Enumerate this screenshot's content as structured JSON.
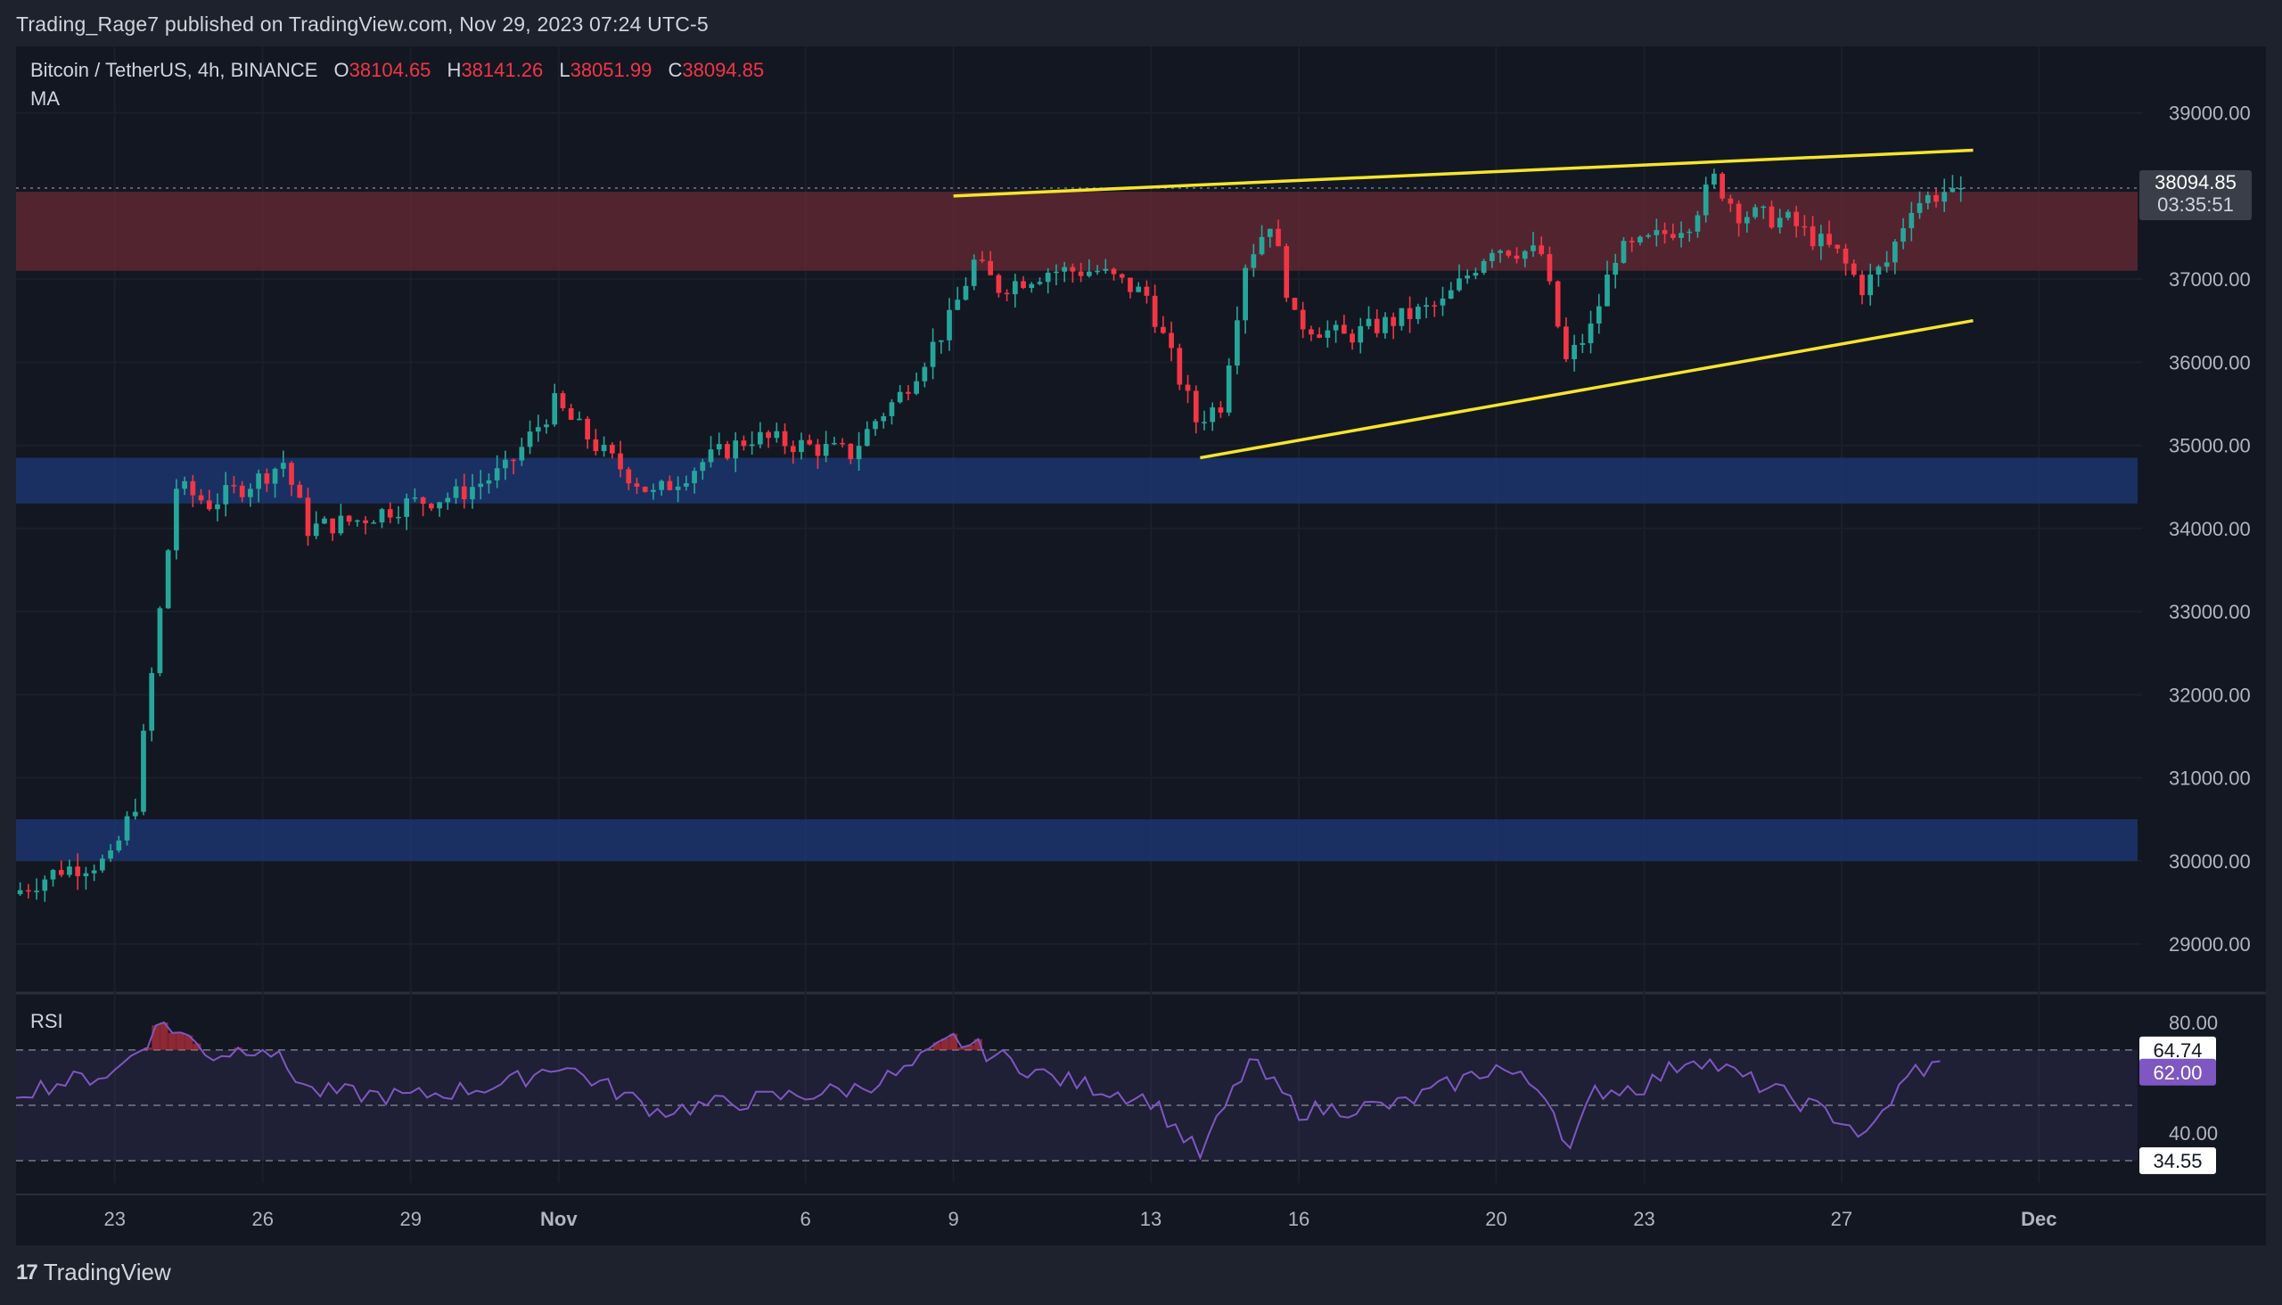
{
  "header": {
    "publish_text": "Trading_Rage7 published on TradingView.com, Nov 29, 2023 07:24 UTC-5"
  },
  "legend": {
    "symbol": "Bitcoin / TetherUS, 4h, BINANCE",
    "open_label": "O",
    "open": "38104.65",
    "high_label": "H",
    "high": "38141.26",
    "low_label": "L",
    "low": "38051.99",
    "close_label": "C",
    "close": "38094.85",
    "ma_label": "MA"
  },
  "rsi_panel": {
    "label": "RSI"
  },
  "price_badge": {
    "price": "38094.85",
    "countdown": "03:35:51"
  },
  "footer": {
    "brand": "TradingView",
    "logo_glyph": "17"
  },
  "colors": {
    "background": "#131722",
    "frame": "#1e222d",
    "bull": "#26a69a",
    "bear": "#f23645",
    "resistance_zone": "#6b2a35",
    "support_zone": "#1e3a78",
    "trendline": "#f5e52b",
    "rsi_line": "#7e57c2"
  },
  "chart_data": [
    {
      "type": "candlestick",
      "title": "Bitcoin / TetherUS, 4h, BINANCE",
      "x_axis": {
        "start": "Oct 21, 2023",
        "end": "Dec 3, 2023",
        "tick_labels": [
          "23",
          "26",
          "29",
          "Nov",
          "6",
          "9",
          "13",
          "16",
          "20",
          "23",
          "27",
          "Dec"
        ]
      },
      "y_axis": {
        "range": [
          28400,
          39800
        ],
        "tick_labels": [
          "39000.00",
          "37000.00",
          "36000.00",
          "35000.00",
          "34000.00",
          "33000.00",
          "32000.00",
          "31000.00",
          "30000.00",
          "29000.00"
        ]
      },
      "price_path": [
        [
          "Oct 21",
          29600
        ],
        [
          "Oct 22",
          29900
        ],
        [
          "Oct 23",
          30000
        ],
        [
          "Oct 23 12:00",
          30700
        ],
        [
          "Oct 24",
          33000
        ],
        [
          "Oct 24 08:00",
          34500
        ],
        [
          "Oct 25",
          34300
        ],
        [
          "Oct 26",
          34600
        ],
        [
          "Oct 26 12:00",
          34800
        ],
        [
          "Oct 27",
          34000
        ],
        [
          "Oct 28",
          34100
        ],
        [
          "Oct 29",
          34300
        ],
        [
          "Oct 30",
          34400
        ],
        [
          "Oct 31",
          34700
        ],
        [
          "Nov 1",
          35500
        ],
        [
          "Nov 2",
          34900
        ],
        [
          "Nov 3",
          34400
        ],
        [
          "Nov 4",
          34800
        ],
        [
          "Nov 5",
          35100
        ],
        [
          "Nov 6",
          35000
        ],
        [
          "Nov 7",
          34900
        ],
        [
          "Nov 7 12:00",
          35300
        ],
        [
          "Nov 8",
          35600
        ],
        [
          "Nov 9",
          36500
        ],
        [
          "Nov 9 12:00",
          37200
        ],
        [
          "Nov 10",
          36900
        ],
        [
          "Nov 11",
          37100
        ],
        [
          "Nov 12",
          37100
        ],
        [
          "Nov 13",
          36800
        ],
        [
          "Nov 14",
          35300
        ],
        [
          "Nov 14 12:00",
          35500
        ],
        [
          "Nov 15",
          37200
        ],
        [
          "Nov 15 12:00",
          37700
        ],
        [
          "Nov 16",
          36500
        ],
        [
          "Nov 17",
          36300
        ],
        [
          "Nov 18",
          36500
        ],
        [
          "Nov 19",
          36700
        ],
        [
          "Nov 20",
          37400
        ],
        [
          "Nov 21",
          37300
        ],
        [
          "Nov 21 12:00",
          36000
        ],
        [
          "Nov 22",
          36400
        ],
        [
          "Nov 22 12:00",
          37300
        ],
        [
          "Nov 23",
          37400
        ],
        [
          "Nov 24",
          37700
        ],
        [
          "Nov 24 12:00",
          38200
        ],
        [
          "Nov 25",
          37800
        ],
        [
          "Nov 26",
          37700
        ],
        [
          "Nov 27",
          37300
        ],
        [
          "Nov 27 12:00",
          36900
        ],
        [
          "Nov 28",
          37200
        ],
        [
          "Nov 28 12:00",
          37900
        ],
        [
          "Nov 29 08:00",
          38094.85
        ]
      ],
      "zones": [
        {
          "role": "resistance",
          "from": 37100,
          "to": 38050
        },
        {
          "role": "support",
          "from": 34300,
          "to": 34850
        },
        {
          "role": "support",
          "from": 30000,
          "to": 30500
        }
      ],
      "trendlines": [
        {
          "role": "upper",
          "from": [
            "Nov 9",
            38000
          ],
          "to": [
            "Nov 29 16:00",
            38550
          ]
        },
        {
          "role": "lower",
          "from": [
            "Nov 14",
            34850
          ],
          "to": [
            "Nov 29 16:00",
            36500
          ]
        }
      ],
      "last_price": 38094.85
    },
    {
      "type": "line",
      "title": "RSI",
      "y_axis": {
        "levels": [
          70,
          50,
          30
        ],
        "tick_labels": [
          "80.00",
          "40.00"
        ],
        "visible_scale_labels": [
          "64.74",
          "62.00",
          "34.55"
        ]
      },
      "series": [
        {
          "values_path": [
            [
              "Oct 21",
              55
            ],
            [
              "Oct 23",
              62
            ],
            [
              "Oct 24",
              80
            ],
            [
              "Oct 25",
              68
            ],
            [
              "Oct 26",
              72
            ],
            [
              "Oct 27",
              55
            ],
            [
              "Oct 29",
              53
            ],
            [
              "Oct 31",
              58
            ],
            [
              "Nov 1",
              65
            ],
            [
              "Nov 3",
              48
            ],
            [
              "Nov 5",
              52
            ],
            [
              "Nov 7",
              56
            ],
            [
              "Nov 8",
              62
            ],
            [
              "Nov 9",
              74
            ],
            [
              "Nov 11",
              60
            ],
            [
              "Nov 13",
              52
            ],
            [
              "Nov 14",
              32
            ],
            [
              "Nov 15",
              66
            ],
            [
              "Nov 16",
              48
            ],
            [
              "Nov 18",
              50
            ],
            [
              "Nov 20",
              64
            ],
            [
              "Nov 21",
              55
            ],
            [
              "Nov 21 12:00",
              34
            ],
            [
              "Nov 22",
              55
            ],
            [
              "Nov 23",
              57
            ],
            [
              "Nov 24",
              68
            ],
            [
              "Nov 25",
              60
            ],
            [
              "Nov 27",
              45
            ],
            [
              "Nov 27 12:00",
              38
            ],
            [
              "Nov 28",
              52
            ],
            [
              "Nov 28 12:00",
              63
            ],
            [
              "Nov 29",
              64
            ]
          ]
        }
      ],
      "last_values": [
        "64.74",
        "62.00"
      ]
    }
  ]
}
